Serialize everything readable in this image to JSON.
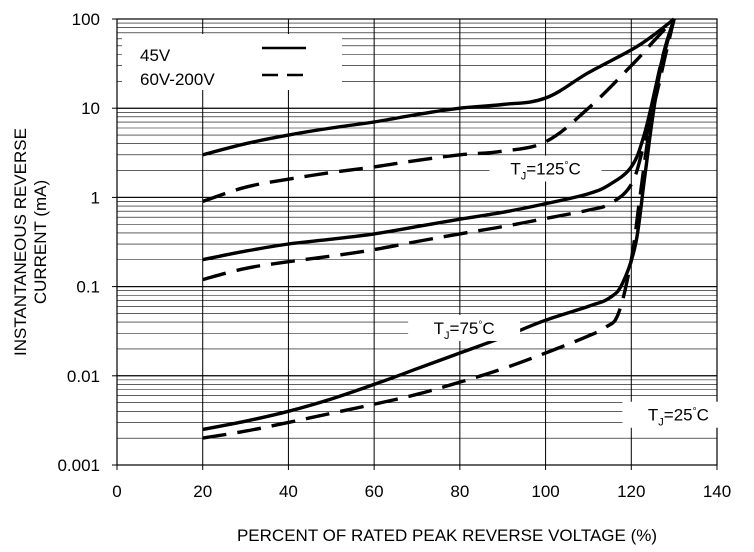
{
  "chart_data": {
    "type": "line",
    "title": "",
    "xlabel": "PERCENT OF RATED PEAK REVERSE VOLTAGE (%)",
    "ylabel": "INSTANTANEOUS REVERSE CURRENT (mA)",
    "ylabel_lines": [
      "INSTANTANEOUS REVERSE",
      "CURRENT (mA)"
    ],
    "xlim": [
      0,
      140
    ],
    "ylim": [
      0.001,
      100
    ],
    "y_scale": "log",
    "x_ticks": [
      0,
      20,
      40,
      60,
      80,
      100,
      120,
      140
    ],
    "x_tick_labels": [
      "0",
      "20",
      "40",
      "60",
      "80",
      "100",
      "120",
      "140"
    ],
    "y_ticks": [
      0.001,
      0.01,
      0.1,
      1,
      10,
      100
    ],
    "y_tick_labels": [
      "0.001",
      "0.01",
      "0.1",
      "1",
      "10",
      "100"
    ],
    "grid": true,
    "legend_position": "top-left",
    "legend": [
      {
        "label": "45V",
        "style": "solid"
      },
      {
        "label": "60V-200V",
        "style": "dashed"
      }
    ],
    "annotations": [
      {
        "id": "tj125",
        "prefix": "T",
        "sub": "J",
        "eq": "=125",
        "deg": "°",
        "unit": "C",
        "x": 100,
        "y": 1.9
      },
      {
        "id": "tj75",
        "prefix": "T",
        "sub": "J",
        "eq": "=75",
        "deg": "°",
        "unit": "C",
        "x": 81,
        "y": 0.031
      },
      {
        "id": "tj25",
        "prefix": "T",
        "sub": "J",
        "eq": "=25",
        "deg": "°",
        "unit": "C",
        "x": 131,
        "y": 0.0033
      }
    ],
    "series": [
      {
        "id": "s45-125",
        "style": "solid",
        "x": [
          20,
          30,
          40,
          50,
          60,
          70,
          80,
          90,
          100,
          110,
          120,
          125,
          130
        ],
        "y": [
          3.0,
          4.0,
          5.0,
          6.0,
          7.0,
          8.5,
          10,
          11,
          13,
          25,
          45,
          65,
          100
        ]
      },
      {
        "id": "s200-125",
        "style": "dashed",
        "x": [
          20,
          30,
          40,
          50,
          60,
          70,
          80,
          90,
          100,
          110,
          120,
          125,
          130
        ],
        "y": [
          0.9,
          1.3,
          1.6,
          1.9,
          2.2,
          2.6,
          3.0,
          3.3,
          4.2,
          10,
          30,
          55,
          100
        ]
      },
      {
        "id": "s45-75",
        "style": "solid",
        "x": [
          20,
          30,
          40,
          50,
          60,
          70,
          80,
          90,
          100,
          110,
          115,
          120,
          123,
          126,
          128,
          130
        ],
        "y": [
          0.2,
          0.25,
          0.3,
          0.34,
          0.39,
          0.47,
          0.57,
          0.68,
          0.85,
          1.1,
          1.4,
          2.2,
          5,
          20,
          50,
          100
        ]
      },
      {
        "id": "s200-75",
        "style": "dashed",
        "x": [
          20,
          30,
          40,
          50,
          60,
          70,
          80,
          90,
          100,
          110,
          115,
          120,
          123,
          126,
          128,
          130
        ],
        "y": [
          0.12,
          0.16,
          0.19,
          0.22,
          0.26,
          0.32,
          0.39,
          0.47,
          0.58,
          0.72,
          0.85,
          1.4,
          4,
          15,
          40,
          100
        ]
      },
      {
        "id": "s45-25",
        "style": "solid",
        "x": [
          20,
          30,
          40,
          50,
          60,
          70,
          80,
          90,
          100,
          110,
          115,
          118,
          121,
          123,
          125,
          127,
          130
        ],
        "y": [
          0.0025,
          0.0031,
          0.004,
          0.0055,
          0.008,
          0.012,
          0.018,
          0.027,
          0.042,
          0.06,
          0.075,
          0.11,
          0.3,
          1.5,
          8,
          30,
          100
        ]
      },
      {
        "id": "s200-25",
        "style": "dashed",
        "x": [
          20,
          30,
          40,
          50,
          60,
          70,
          80,
          90,
          100,
          110,
          114,
          117,
          120,
          122,
          124,
          126,
          128,
          130
        ],
        "y": [
          0.002,
          0.0024,
          0.003,
          0.0038,
          0.0048,
          0.0062,
          0.0085,
          0.012,
          0.018,
          0.028,
          0.035,
          0.05,
          0.2,
          1,
          5,
          20,
          50,
          100
        ]
      }
    ]
  }
}
